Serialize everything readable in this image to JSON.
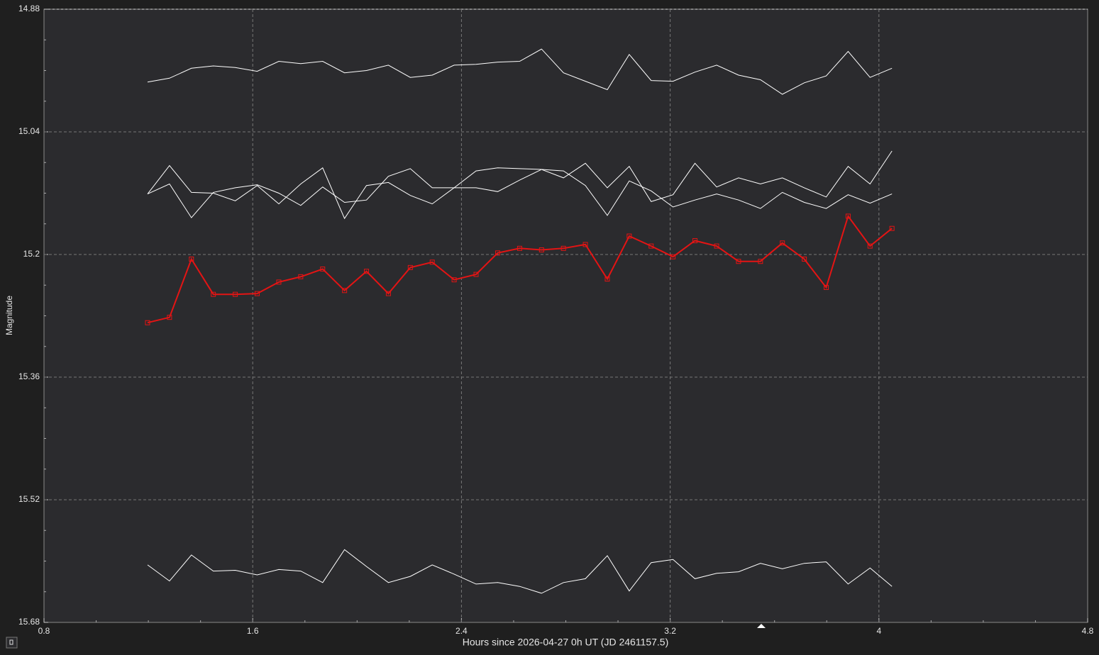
{
  "chart_data": {
    "type": "line",
    "ylabel": "Magnitude",
    "xlabel": "Hours since 2026-04-27 0h UT (JD 2461157.5)",
    "xlim": [
      0.8,
      4.8
    ],
    "xticks": [
      0.8,
      1.6,
      2.4,
      3.2,
      4,
      4.8
    ],
    "ylim": [
      14.88,
      15.68
    ],
    "yticks": [
      14.88,
      15.04,
      15.2,
      15.36,
      15.52,
      15.68
    ],
    "y_inverted": true,
    "grid": true,
    "x": [
      1.197,
      1.281,
      1.365,
      1.449,
      1.533,
      1.617,
      1.7,
      1.784,
      1.868,
      1.952,
      2.036,
      2.12,
      2.204,
      2.288,
      2.372,
      2.456,
      2.539,
      2.623,
      2.707,
      2.791,
      2.875,
      2.959,
      3.043,
      3.127,
      3.211,
      3.295,
      3.378,
      3.462,
      3.546,
      3.63,
      3.714,
      3.798,
      3.882,
      3.966,
      4.05
    ],
    "series": [
      {
        "color": "#e41414",
        "marker": "square",
        "values": [
          15.289,
          15.282,
          15.206,
          15.252,
          15.252,
          15.251,
          15.236,
          15.229,
          15.219,
          15.247,
          15.222,
          15.251,
          15.217,
          15.21,
          15.233,
          15.226,
          15.198,
          15.192,
          15.194,
          15.192,
          15.187,
          15.232,
          15.176,
          15.189,
          15.203,
          15.182,
          15.189,
          15.209,
          15.209,
          15.185,
          15.206,
          15.243,
          15.15,
          15.189,
          15.166
        ]
      },
      {
        "color": "#ffffff",
        "values": [
          14.975,
          14.97,
          14.957,
          14.954,
          14.956,
          14.961,
          14.948,
          14.951,
          14.948,
          14.963,
          14.96,
          14.953,
          14.969,
          14.966,
          14.953,
          14.952,
          14.949,
          14.948,
          14.932,
          14.963,
          14.974,
          14.985,
          14.939,
          14.973,
          14.974,
          14.962,
          14.953,
          14.966,
          14.972,
          14.991,
          14.976,
          14.967,
          14.935,
          14.969,
          14.957
        ]
      },
      {
        "color": "#ffffff",
        "values": [
          15.121,
          15.084,
          15.119,
          15.12,
          15.13,
          15.11,
          15.134,
          15.108,
          15.087,
          15.153,
          15.11,
          15.106,
          15.123,
          15.134,
          15.113,
          15.113,
          15.118,
          15.103,
          15.089,
          15.1,
          15.081,
          15.113,
          15.085,
          15.131,
          15.122,
          15.081,
          15.112,
          15.1,
          15.108,
          15.1,
          15.113,
          15.125,
          15.085,
          15.108,
          15.065
        ]
      },
      {
        "color": "#ffffff",
        "values": [
          15.121,
          15.108,
          15.152,
          15.119,
          15.113,
          15.109,
          15.12,
          15.136,
          15.112,
          15.132,
          15.129,
          15.098,
          15.088,
          15.113,
          15.113,
          15.091,
          15.087,
          15.088,
          15.089,
          15.091,
          15.11,
          15.149,
          15.104,
          15.117,
          15.138,
          15.129,
          15.121,
          15.129,
          15.14,
          15.119,
          15.132,
          15.14,
          15.122,
          15.133,
          15.121
        ]
      },
      {
        "color": "#ffffff",
        "values": [
          15.605,
          15.626,
          15.592,
          15.613,
          15.612,
          15.618,
          15.611,
          15.613,
          15.628,
          15.585,
          15.607,
          15.628,
          15.62,
          15.605,
          15.617,
          15.63,
          15.628,
          15.633,
          15.642,
          15.628,
          15.623,
          15.593,
          15.639,
          15.602,
          15.598,
          15.623,
          15.616,
          15.614,
          15.603,
          15.61,
          15.603,
          15.601,
          15.63,
          15.609,
          15.633
        ]
      }
    ]
  }
}
